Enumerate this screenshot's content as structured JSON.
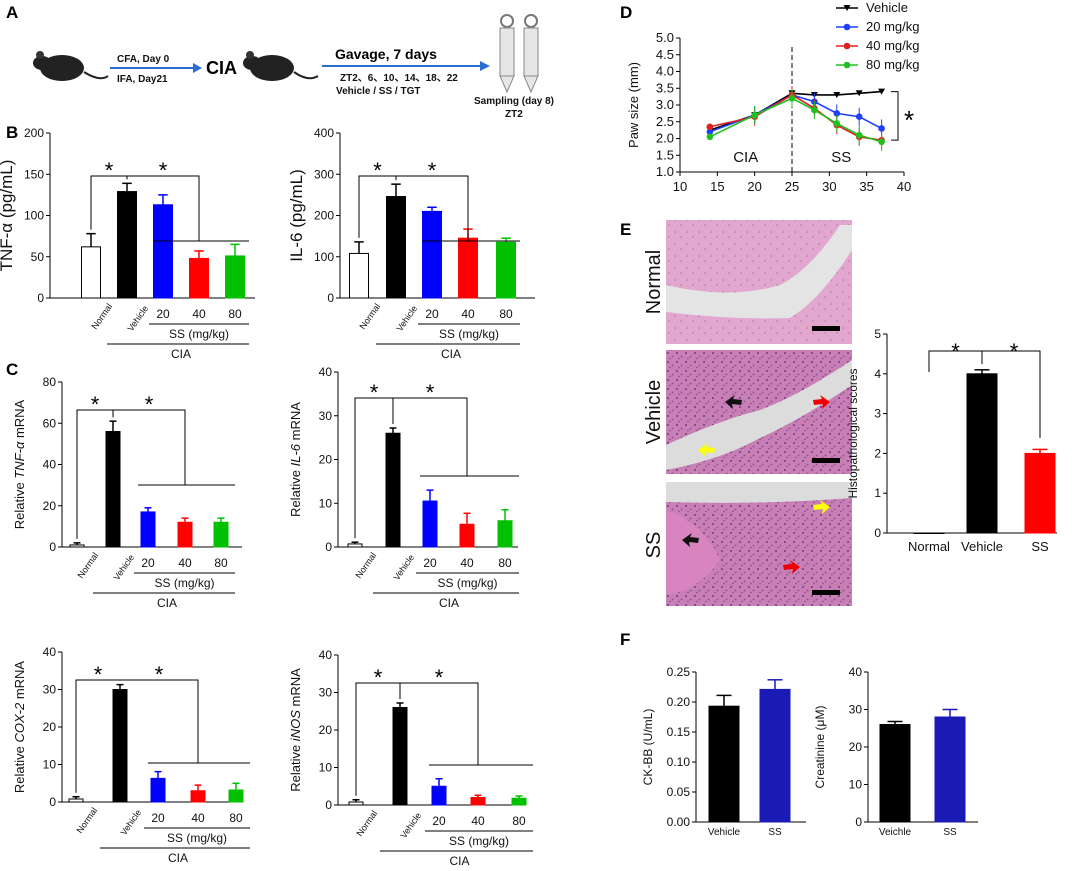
{
  "panels": {
    "A": "A",
    "B": "B",
    "C": "C",
    "D": "D",
    "E": "E",
    "F": "F"
  },
  "colors": {
    "normal": "#ffffff",
    "vehicle": "#000000",
    "dose20": "#0000ff",
    "dose40": "#ff0000",
    "dose80": "#00c000",
    "ss": "#ff0000",
    "f_ss": "#1a1ab5"
  },
  "panel_a": {
    "step1_top": "CFA, Day 0",
    "step1_bottom": "IFA, Day21",
    "cia": "CIA",
    "gavage": "Gavage, 7 days",
    "times": "ZT2、6、10、14、18、22",
    "groups": "Vehicle / SS / TGT",
    "sampling": "Sampling (day 8)",
    "sampling_time": "ZT2"
  },
  "group_labels": {
    "normal": "Normal",
    "vehicle": "Vehicle",
    "doses": [
      "20",
      "40",
      "80"
    ],
    "ss_dose": "SS (mg/kg)",
    "cia": "CIA"
  },
  "star": "*",
  "chart_data": [
    {
      "id": "B1",
      "type": "bar",
      "ylabel": "TNF-α (pg/mL)",
      "ylim": [
        0,
        200
      ],
      "yticks": [
        "0",
        "50",
        "100",
        "150",
        "200"
      ],
      "categories": [
        "Normal",
        "Vehicle",
        "20",
        "40",
        "80"
      ],
      "values": [
        62,
        129,
        113,
        48,
        51
      ],
      "errors": [
        16,
        10,
        12,
        9,
        14
      ]
    },
    {
      "id": "B2",
      "type": "bar",
      "ylabel": "IL-6 (pg/mL)",
      "ylim": [
        0,
        400
      ],
      "yticks": [
        "0",
        "100",
        "200",
        "300",
        "400"
      ],
      "categories": [
        "Normal",
        "Vehicle",
        "20",
        "40",
        "80"
      ],
      "values": [
        108,
        246,
        210,
        145,
        135
      ],
      "errors": [
        28,
        30,
        10,
        22,
        10
      ]
    },
    {
      "id": "C1",
      "type": "bar",
      "ylabel_pre": "Relative ",
      "ylabel_it": "TNF-α",
      "ylabel_post": " mRNA",
      "ylim": [
        0,
        80
      ],
      "yticks": [
        "0",
        "20",
        "40",
        "60",
        "80"
      ],
      "categories": [
        "Normal",
        "Vehicle",
        "20",
        "40",
        "80"
      ],
      "values": [
        1,
        56,
        17,
        12,
        12
      ],
      "errors": [
        1,
        5,
        2,
        2,
        2
      ]
    },
    {
      "id": "C2",
      "type": "bar",
      "ylabel_pre": "Relative ",
      "ylabel_it": "IL-6",
      "ylabel_post": " mRNA",
      "ylim": [
        0,
        40
      ],
      "yticks": [
        "0",
        "10",
        "20",
        "30",
        "40"
      ],
      "categories": [
        "Normal",
        "Vehicle",
        "20",
        "40",
        "80"
      ],
      "values": [
        0.7,
        26,
        10.5,
        5.2,
        6
      ],
      "errors": [
        0.4,
        1.2,
        2.5,
        2.5,
        2.5
      ]
    },
    {
      "id": "C3",
      "type": "bar",
      "ylabel_pre": "Relative ",
      "ylabel_it": "COX-2",
      "ylabel_post": " mRNA",
      "ylim": [
        0,
        40
      ],
      "yticks": [
        "0",
        "10",
        "20",
        "30",
        "40"
      ],
      "categories": [
        "Normal",
        "Vehicle",
        "20",
        "40",
        "80"
      ],
      "values": [
        0.8,
        30,
        6.3,
        3,
        3.2
      ],
      "errors": [
        0.6,
        1.3,
        1.8,
        1.5,
        1.8
      ]
    },
    {
      "id": "C4",
      "type": "bar",
      "ylabel_pre": "Relative ",
      "ylabel_it": "iNOS",
      "ylabel_post": " mRNA",
      "ylim": [
        0,
        40
      ],
      "yticks": [
        "0",
        "10",
        "20",
        "30",
        "40"
      ],
      "categories": [
        "Normal",
        "Vehicle",
        "20",
        "40",
        "80"
      ],
      "values": [
        0.8,
        26,
        5,
        2,
        1.8
      ],
      "errors": [
        0.6,
        1.2,
        2,
        0.6,
        0.6
      ]
    },
    {
      "id": "D",
      "type": "line",
      "ylabel": "Paw size (mm)",
      "xlim": [
        10,
        40
      ],
      "ylim": [
        1.0,
        5.0
      ],
      "xticks": [
        "10",
        "15",
        "20",
        "25",
        "30",
        "35",
        "40"
      ],
      "yticks": [
        "1.0",
        "1.5",
        "2.0",
        "2.5",
        "3.0",
        "3.5",
        "4.0",
        "4.5",
        "5.0"
      ],
      "annotations": {
        "cia": "CIA",
        "ss": "SS"
      },
      "series": [
        {
          "name": "Vehicle",
          "color": "#000000",
          "x": [
            14,
            20,
            25,
            28,
            31,
            34,
            37
          ],
          "y": [
            2.25,
            2.7,
            3.35,
            3.3,
            3.3,
            3.35,
            3.4
          ]
        },
        {
          "name": "20 mg/kg",
          "color": "#1f3fff",
          "x": [
            14,
            20,
            25,
            28,
            31,
            34,
            37
          ],
          "y": [
            2.2,
            2.7,
            3.3,
            3.1,
            2.75,
            2.65,
            2.3
          ]
        },
        {
          "name": "40 mg/kg",
          "color": "#e02020",
          "x": [
            14,
            20,
            25,
            28,
            31,
            34,
            37
          ],
          "y": [
            2.35,
            2.65,
            3.3,
            2.9,
            2.4,
            2.05,
            1.95
          ]
        },
        {
          "name": "80 mg/kg",
          "color": "#20c020",
          "x": [
            14,
            20,
            25,
            28,
            31,
            34,
            37
          ],
          "y": [
            2.05,
            2.7,
            3.2,
            2.85,
            2.45,
            2.1,
            1.9
          ]
        }
      ]
    },
    {
      "id": "E",
      "type": "bar",
      "ylabel": "Histopathological scores",
      "ylim": [
        0,
        5
      ],
      "yticks": [
        "0",
        "1",
        "2",
        "3",
        "4",
        "5"
      ],
      "categories": [
        "Normal",
        "Vehicle",
        "SS"
      ],
      "values": [
        0,
        4,
        2
      ],
      "errors": [
        0,
        0.1,
        0.1
      ]
    },
    {
      "id": "F1",
      "type": "bar",
      "ylabel": "CK-BB (U/mL)",
      "ylim": [
        0,
        0.25
      ],
      "yticks": [
        "0.00",
        "0.05",
        "0.10",
        "0.15",
        "0.20",
        "0.25"
      ],
      "categories": [
        "Vehicle",
        "SS"
      ],
      "values": [
        0.193,
        0.221
      ],
      "errors": [
        0.018,
        0.016
      ]
    },
    {
      "id": "F2",
      "type": "bar",
      "ylabel": "Creatinine (μM)",
      "ylim": [
        0,
        40
      ],
      "yticks": [
        "0",
        "10",
        "20",
        "30",
        "40"
      ],
      "categories": [
        "Veichle",
        "SS"
      ],
      "values": [
        26,
        28
      ],
      "errors": [
        0.8,
        2
      ]
    }
  ],
  "histology": {
    "rows": [
      "Normal",
      "Vehicle",
      "SS"
    ]
  }
}
